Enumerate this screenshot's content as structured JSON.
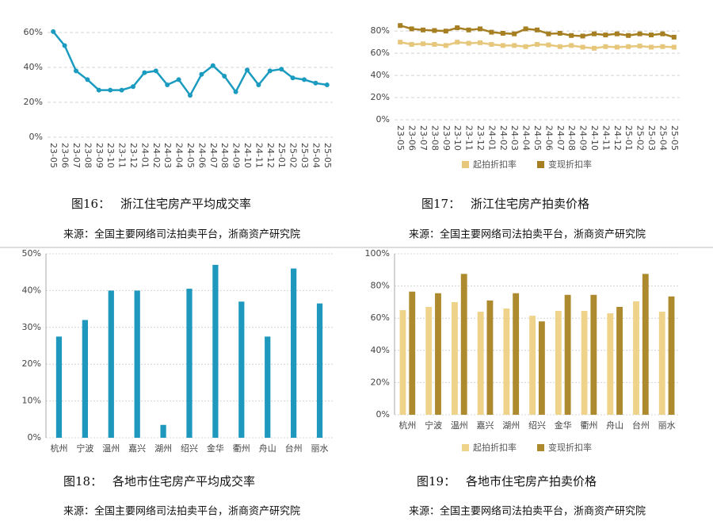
{
  "chart_data": [
    {
      "type": "line",
      "caption_number": "图16：",
      "title": "浙江住宅房产平均成交率",
      "source": "来源：全国主要网络司法拍卖平台，浙商资产研究院",
      "x": [
        "23-05",
        "23-06",
        "23-07",
        "23-08",
        "23-09",
        "23-10",
        "23-11",
        "23-12",
        "24-01",
        "24-02",
        "24-03",
        "24-04",
        "24-05",
        "24-06",
        "24-07",
        "24-08",
        "24-09",
        "24-10",
        "24-11",
        "24-12",
        "25-01",
        "25-02",
        "25-03",
        "25-04",
        "25-05"
      ],
      "series": [
        {
          "color": "#1b9bc0",
          "marker": "circle",
          "values": [
            60.5,
            52.5,
            38,
            33,
            27,
            27,
            27,
            29,
            37,
            38,
            30,
            33,
            24,
            36,
            41,
            35,
            26,
            38.5,
            30,
            38,
            39,
            34,
            33,
            31,
            30
          ]
        }
      ],
      "ylim": [
        0,
        65
      ],
      "yticks": [
        {
          "value": 0,
          "label": "0%"
        },
        {
          "value": 20,
          "label": "20%"
        },
        {
          "value": 40,
          "label": "40%"
        },
        {
          "value": 60,
          "label": "60%"
        }
      ],
      "grid": true
    },
    {
      "type": "line",
      "caption_number": "图17：",
      "title": "浙江住宅房产拍卖价格",
      "source": "来源：全国主要网络司法拍卖平台，浙商资产研究院",
      "x": [
        "23-05",
        "23-06",
        "23-07",
        "23-08",
        "23-09",
        "23-10",
        "23-11",
        "23-12",
        "24-01",
        "24-02",
        "24-03",
        "24-04",
        "24-05",
        "24-06",
        "24-07",
        "24-08",
        "24-09",
        "24-10",
        "24-11",
        "24-12",
        "25-01",
        "25-02",
        "25-03",
        "25-04",
        "25-05"
      ],
      "series": [
        {
          "name": "起拍折扣率",
          "color": "#e6c77c",
          "marker": "square",
          "values": [
            70,
            68,
            68.5,
            68,
            67,
            70,
            69,
            69.5,
            68,
            67,
            67,
            66,
            68,
            67.5,
            66,
            67,
            65.5,
            64.5,
            66,
            65.5,
            66,
            66.5,
            65.5,
            66,
            65.5
          ]
        },
        {
          "name": "变现折扣率",
          "color": "#a67f22",
          "marker": "square",
          "values": [
            85,
            82,
            81,
            80.5,
            80,
            83,
            81,
            82,
            79,
            78,
            77.5,
            82,
            81,
            77.5,
            78,
            76,
            75.5,
            77.5,
            76.5,
            77.5,
            76,
            77.5,
            76.5,
            77.5,
            74.5
          ]
        }
      ],
      "ylim": [
        0,
        88
      ],
      "yticks": [
        {
          "value": 0,
          "label": "0%"
        },
        {
          "value": 20,
          "label": "20%"
        },
        {
          "value": 40,
          "label": "40%"
        },
        {
          "value": 60,
          "label": "60%"
        },
        {
          "value": 80,
          "label": "80%"
        }
      ],
      "grid": true,
      "legend": "bottom"
    },
    {
      "type": "bar",
      "caption_number": "图18：",
      "title": "各地市住宅房产平均成交率",
      "source": "来源：全国主要网络司法拍卖平台，浙商资产研究院",
      "categories": [
        "杭州",
        "宁波",
        "温州",
        "嘉兴",
        "湖州",
        "绍兴",
        "金华",
        "衢州",
        "舟山",
        "台州",
        "丽水"
      ],
      "series": [
        {
          "color": "#1f98bd",
          "values": [
            27.5,
            32,
            40,
            40,
            3.5,
            40.5,
            47,
            37,
            27.5,
            46,
            36.5
          ]
        }
      ],
      "ylim": [
        0,
        50
      ],
      "yticks": [
        {
          "value": 0,
          "label": "0%"
        },
        {
          "value": 10,
          "label": "10%"
        },
        {
          "value": 20,
          "label": "20%"
        },
        {
          "value": 30,
          "label": "30%"
        },
        {
          "value": 40,
          "label": "40%"
        },
        {
          "value": 50,
          "label": "50%"
        }
      ],
      "grid": true
    },
    {
      "type": "bar",
      "caption_number": "图19：",
      "title": "各地市住宅房产拍卖价格",
      "source": "来源：全国主要网络司法拍卖平台，浙商资产研究院",
      "categories": [
        "杭州",
        "宁波",
        "温州",
        "嘉兴",
        "湖州",
        "绍兴",
        "金华",
        "衢州",
        "舟山",
        "台州",
        "丽水"
      ],
      "series": [
        {
          "name": "起拍折扣率",
          "color": "#f0d38a",
          "values": [
            65,
            67,
            70,
            64,
            66,
            61.5,
            64.5,
            64.5,
            63,
            70.5,
            64
          ]
        },
        {
          "name": "变现折扣率",
          "color": "#ae8a2e",
          "values": [
            76.5,
            75.5,
            87.5,
            71,
            75.5,
            58,
            74.5,
            74.5,
            67,
            87.5,
            73.5
          ]
        }
      ],
      "ylim": [
        0,
        100
      ],
      "yticks": [
        {
          "value": 0,
          "label": "0%"
        },
        {
          "value": 20,
          "label": "20%"
        },
        {
          "value": 40,
          "label": "40%"
        },
        {
          "value": 60,
          "label": "60%"
        },
        {
          "value": 80,
          "label": "80%"
        },
        {
          "value": 100,
          "label": "100%"
        }
      ],
      "grid": true,
      "legend": "bottom"
    }
  ]
}
